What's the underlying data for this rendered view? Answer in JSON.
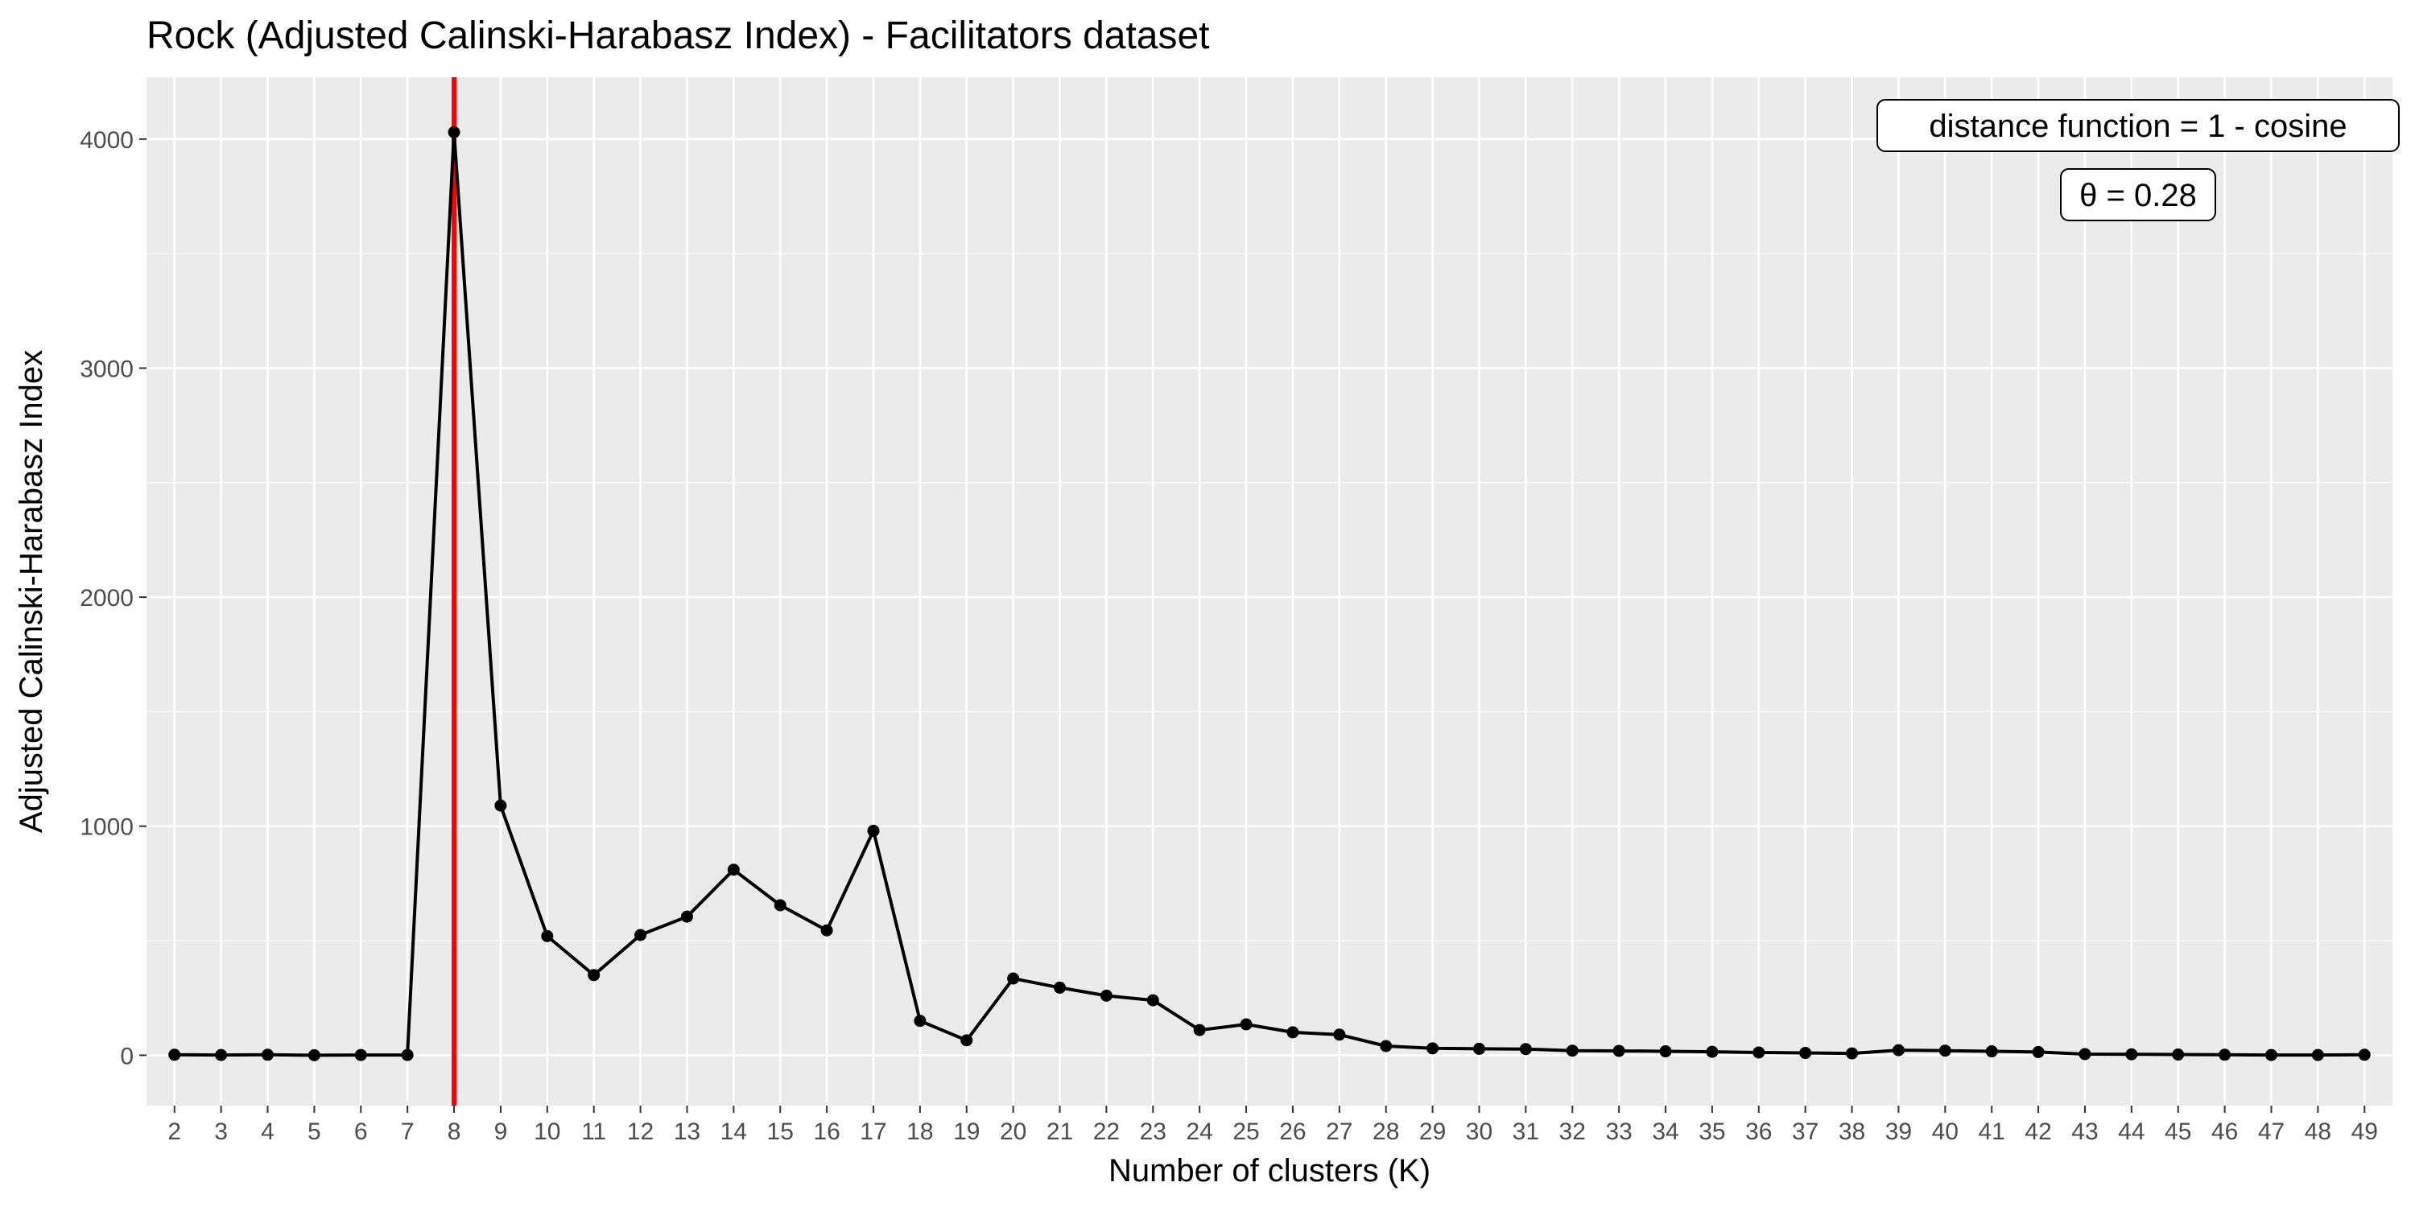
{
  "chart_data": {
    "type": "line",
    "title": "Rock (Adjusted Calinski-Harabasz Index) - Facilitators dataset",
    "xlabel": "Number of clusters (K)",
    "ylabel": "Adjusted Calinski-Harabasz Index",
    "x": [
      2,
      3,
      4,
      5,
      6,
      7,
      8,
      9,
      10,
      11,
      12,
      13,
      14,
      15,
      16,
      17,
      18,
      19,
      20,
      21,
      22,
      23,
      24,
      25,
      26,
      27,
      28,
      29,
      30,
      31,
      32,
      33,
      34,
      35,
      36,
      37,
      38,
      39,
      40,
      41,
      42,
      43,
      44,
      45,
      46,
      47,
      48,
      49
    ],
    "series": [
      {
        "values": [
          2,
          1,
          2,
          0,
          1,
          1,
          4030,
          1090,
          520,
          350,
          525,
          605,
          810,
          655,
          545,
          980,
          150,
          65,
          335,
          295,
          260,
          240,
          110,
          135,
          100,
          90,
          40,
          30,
          28,
          27,
          20,
          19,
          17,
          15,
          12,
          10,
          8,
          22,
          20,
          17,
          14,
          5,
          4,
          3,
          2,
          1,
          1,
          2
        ]
      }
    ],
    "vline": {
      "x": 8,
      "color": "#ff0000"
    },
    "xlim": [
      1.4,
      49.6
    ],
    "ylim": [
      -220,
      4270
    ],
    "yticks": [
      0,
      1000,
      2000,
      3000,
      4000
    ],
    "grid": true,
    "colors": {
      "panel_bg": "#ebebeb",
      "grid": "#ffffff",
      "line": "#000000",
      "vline": "#ff0000"
    },
    "annotations": [
      {
        "text": "distance function = 1 -  cosine"
      },
      {
        "text": "θ = 0.28"
      }
    ]
  }
}
